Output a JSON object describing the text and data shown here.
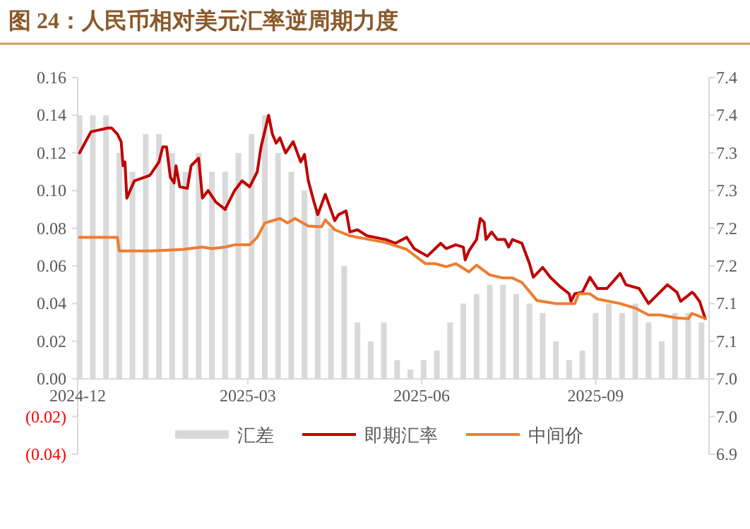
{
  "chart_data": {
    "type": "bar",
    "title": "图 24：人民币相对美元汇率逆周期力度",
    "xlim": [
      "2024-12-01",
      "2025-10-31"
    ],
    "xticks": [
      {
        "value": "2024-12-01",
        "label": "2024-12"
      },
      {
        "value": "2025-03-01",
        "label": "2025-03"
      },
      {
        "value": "2025-06-01",
        "label": "2025-06"
      },
      {
        "value": "2025-09-01",
        "label": "2025-09"
      }
    ],
    "ylim": [
      -0.04,
      0.16
    ],
    "yticks": [
      {
        "value": 0.16,
        "label": "0.16"
      },
      {
        "value": 0.14,
        "label": "0.14"
      },
      {
        "value": 0.12,
        "label": "0.12"
      },
      {
        "value": 0.1,
        "label": "0.10"
      },
      {
        "value": 0.08,
        "label": "0.08"
      },
      {
        "value": 0.06,
        "label": "0.06"
      },
      {
        "value": 0.04,
        "label": "0.04"
      },
      {
        "value": 0.02,
        "label": "0.02"
      },
      {
        "value": 0,
        "label": "0.00"
      },
      {
        "value": -0.02,
        "label": "(0.02)"
      },
      {
        "value": -0.04,
        "label": "(0.04)"
      }
    ],
    "y2lim": [
      6.9,
      7.4
    ],
    "y2ticks": [
      {
        "value": 7.4,
        "label": "7.4"
      },
      {
        "value": 7.35,
        "label": "7.4"
      },
      {
        "value": 7.3,
        "label": "7.3"
      },
      {
        "value": 7.25,
        "label": "7.3"
      },
      {
        "value": 7.2,
        "label": "7.2"
      },
      {
        "value": 7.15,
        "label": "7.2"
      },
      {
        "value": 7.1,
        "label": "7.1"
      },
      {
        "value": 7.05,
        "label": "7.1"
      },
      {
        "value": 7.0,
        "label": "7.0"
      },
      {
        "value": 6.95,
        "label": "7.0"
      },
      {
        "value": 6.9,
        "label": "6.9"
      }
    ],
    "legend": "bottom",
    "series": [
      {
        "name": "汇差",
        "color": "#d9d9d9",
        "x": [
          "2024-12-02",
          "2024-12-09",
          "2024-12-16",
          "2024-12-23",
          "2024-12-30",
          "2025-01-06",
          "2025-01-13",
          "2025-01-20",
          "2025-01-27",
          "2025-02-03",
          "2025-02-10",
          "2025-02-17",
          "2025-02-24",
          "2025-03-03",
          "2025-03-10",
          "2025-03-17",
          "2025-03-24",
          "2025-03-31",
          "2025-04-07",
          "2025-04-14",
          "2025-04-21",
          "2025-04-28",
          "2025-05-05",
          "2025-05-12",
          "2025-05-19",
          "2025-05-26",
          "2025-06-02",
          "2025-06-09",
          "2025-06-16",
          "2025-06-23",
          "2025-06-30",
          "2025-07-07",
          "2025-07-14",
          "2025-07-21",
          "2025-07-28",
          "2025-08-04",
          "2025-08-11",
          "2025-08-18",
          "2025-08-25",
          "2025-09-01",
          "2025-09-08",
          "2025-09-15",
          "2025-09-22",
          "2025-09-29",
          "2025-10-06",
          "2025-10-13",
          "2025-10-20",
          "2025-10-27"
        ],
        "values": [
          0.14,
          0.14,
          0.14,
          0.12,
          0.11,
          0.13,
          0.13,
          0.12,
          0.11,
          0.12,
          0.11,
          0.11,
          0.12,
          0.13,
          0.14,
          0.12,
          0.11,
          0.1,
          0.09,
          0.08,
          0.06,
          0.03,
          0.02,
          0.03,
          0.01,
          0.005,
          0.01,
          0.015,
          0.03,
          0.04,
          0.045,
          0.05,
          0.05,
          0.045,
          0.04,
          0.035,
          0.02,
          0.01,
          0.015,
          0.035,
          0.04,
          0.035,
          0.04,
          0.03,
          0.02,
          0.035,
          0.035,
          0.03
        ]
      },
      {
        "name": "即期汇率",
        "type": "line",
        "axis": "y2",
        "color": "#c00000",
        "x": [
          "2024-12-02",
          "2024-12-08",
          "2024-12-17",
          "2024-12-19",
          "2024-12-22",
          "2024-12-24",
          "2024-12-25",
          "2024-12-26",
          "2024-12-27",
          "2024-12-31",
          "2025-01-08",
          "2025-01-09",
          "2025-01-13",
          "2025-01-15",
          "2025-01-17",
          "2025-01-19",
          "2025-01-21",
          "2025-01-22",
          "2025-01-24",
          "2025-01-28",
          "2025-01-30",
          "2025-02-03",
          "2025-02-05",
          "2025-02-08",
          "2025-02-12",
          "2025-02-17",
          "2025-02-22",
          "2025-02-26",
          "2025-03-02",
          "2025-03-06",
          "2025-03-08",
          "2025-03-12",
          "2025-03-14",
          "2025-03-16",
          "2025-03-18",
          "2025-03-21",
          "2025-03-25",
          "2025-03-29",
          "2025-03-31",
          "2025-04-02",
          "2025-04-05",
          "2025-04-07",
          "2025-04-11",
          "2025-04-16",
          "2025-04-18",
          "2025-04-22",
          "2025-04-24",
          "2025-04-28",
          "2025-05-03",
          "2025-05-13",
          "2025-05-18",
          "2025-05-24",
          "2025-05-28",
          "2025-06-04",
          "2025-06-11",
          "2025-06-14",
          "2025-06-19",
          "2025-06-23",
          "2025-06-24",
          "2025-06-26",
          "2025-06-30",
          "2025-07-02",
          "2025-07-04",
          "2025-07-05",
          "2025-07-08",
          "2025-07-11",
          "2025-07-15",
          "2025-07-17",
          "2025-07-19",
          "2025-07-24",
          "2025-07-28",
          "2025-07-30",
          "2025-08-04",
          "2025-08-08",
          "2025-08-13",
          "2025-08-18",
          "2025-08-19",
          "2025-08-21",
          "2025-08-25",
          "2025-08-29",
          "2025-09-02",
          "2025-09-07",
          "2025-09-14",
          "2025-09-17",
          "2025-09-24",
          "2025-09-29",
          "2025-10-05",
          "2025-10-09",
          "2025-10-14",
          "2025-10-16",
          "2025-10-22",
          "2025-10-23",
          "2025-10-26",
          "2025-10-29"
        ],
        "values": [
          7.3,
          7.328,
          7.333,
          7.333,
          7.325,
          7.315,
          7.283,
          7.288,
          7.24,
          7.263,
          7.27,
          7.273,
          7.288,
          7.308,
          7.308,
          7.268,
          7.26,
          7.283,
          7.255,
          7.253,
          7.283,
          7.293,
          7.24,
          7.25,
          7.235,
          7.225,
          7.25,
          7.263,
          7.255,
          7.275,
          7.308,
          7.35,
          7.325,
          7.313,
          7.32,
          7.3,
          7.315,
          7.288,
          7.298,
          7.263,
          7.235,
          7.218,
          7.245,
          7.21,
          7.218,
          7.223,
          7.195,
          7.198,
          7.19,
          7.185,
          7.18,
          7.188,
          7.173,
          7.163,
          7.18,
          7.173,
          7.178,
          7.175,
          7.158,
          7.17,
          7.185,
          7.213,
          7.208,
          7.185,
          7.195,
          7.185,
          7.185,
          7.175,
          7.185,
          7.18,
          7.153,
          7.135,
          7.148,
          7.135,
          7.123,
          7.113,
          7.103,
          7.113,
          7.115,
          7.135,
          7.12,
          7.12,
          7.14,
          7.125,
          7.12,
          7.1,
          7.115,
          7.125,
          7.115,
          7.103,
          7.115,
          7.113,
          7.103,
          7.08
        ]
      },
      {
        "name": "中间价",
        "type": "line",
        "axis": "y2",
        "color": "#ed7d31",
        "x": [
          "2024-12-02",
          "2024-12-22",
          "2024-12-23",
          "2025-01-09",
          "2025-01-26",
          "2025-02-05",
          "2025-02-10",
          "2025-02-17",
          "2025-02-22",
          "2025-03-02",
          "2025-03-06",
          "2025-03-10",
          "2025-03-18",
          "2025-03-22",
          "2025-03-26",
          "2025-04-02",
          "2025-04-09",
          "2025-04-11",
          "2025-04-16",
          "2025-04-24",
          "2025-04-28",
          "2025-05-13",
          "2025-05-24",
          "2025-06-03",
          "2025-06-08",
          "2025-06-14",
          "2025-06-19",
          "2025-06-26",
          "2025-06-30",
          "2025-07-07",
          "2025-07-14",
          "2025-07-19",
          "2025-07-24",
          "2025-08-01",
          "2025-08-11",
          "2025-08-21",
          "2025-08-23",
          "2025-08-29",
          "2025-09-02",
          "2025-09-14",
          "2025-09-22",
          "2025-09-29",
          "2025-10-05",
          "2025-10-14",
          "2025-10-20",
          "2025-10-22",
          "2025-10-29"
        ],
        "values": [
          7.188,
          7.188,
          7.17,
          7.17,
          7.172,
          7.175,
          7.173,
          7.175,
          7.178,
          7.178,
          7.188,
          7.207,
          7.213,
          7.207,
          7.213,
          7.203,
          7.202,
          7.211,
          7.198,
          7.19,
          7.188,
          7.181,
          7.172,
          7.153,
          7.153,
          7.149,
          7.153,
          7.142,
          7.151,
          7.138,
          7.134,
          7.134,
          7.128,
          7.104,
          7.1,
          7.1,
          7.113,
          7.113,
          7.106,
          7.1,
          7.094,
          7.085,
          7.085,
          7.081,
          7.08,
          7.087,
          7.08
        ]
      }
    ]
  }
}
